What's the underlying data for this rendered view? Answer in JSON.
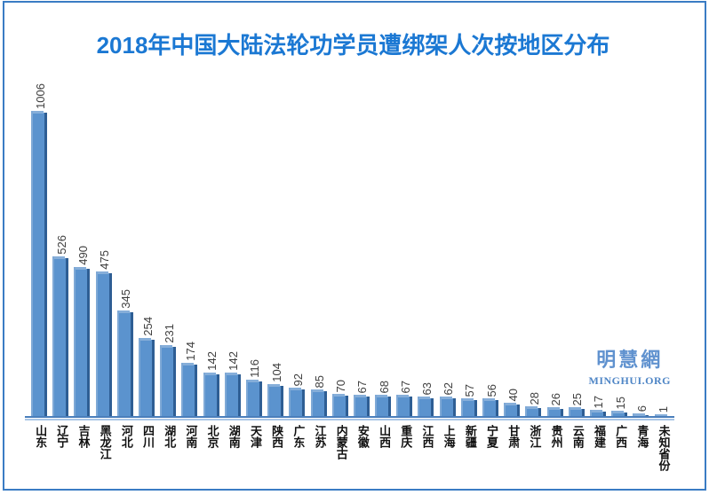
{
  "title": "2018年中国大陆法轮功学员遭绑架人次按地区分布",
  "watermark": {
    "cn": "明慧網",
    "en": "MINGHUI.ORG"
  },
  "colors": {
    "title_blue": "#1b78d3",
    "bar_face": "#5b93ce",
    "bar_side": "#2e5e94",
    "bar_bevel": "#86aed9",
    "axis_dark": "#4a7ebb",
    "axis_light": "#aac6e6",
    "frame_border": "#3a7cc4",
    "watermark_blue": "#6092cf",
    "value_label": "#3f3f3f"
  },
  "chart_data": {
    "type": "bar",
    "title": "2018年中国大陆法轮功学员遭绑架人次按地区分布",
    "categories": [
      "山东",
      "辽宁",
      "吉林",
      "黑龙江",
      "河北",
      "四川",
      "湖北",
      "河南",
      "北京",
      "湖南",
      "天津",
      "陕西",
      "广东",
      "江苏",
      "内蒙古",
      "安徽",
      "山西",
      "重庆",
      "江西",
      "上海",
      "新疆",
      "宁夏",
      "甘肃",
      "浙江",
      "贵州",
      "云南",
      "福建",
      "广西",
      "青海",
      "未知省份"
    ],
    "values": [
      1006,
      526,
      490,
      475,
      345,
      254,
      231,
      174,
      142,
      142,
      116,
      104,
      92,
      85,
      70,
      67,
      68,
      67,
      63,
      62,
      57,
      56,
      40,
      28,
      26,
      25,
      17,
      15,
      6,
      1
    ],
    "xlabel": "",
    "ylabel": "",
    "ylim": [
      0,
      1100
    ],
    "grid": false,
    "legend": false,
    "data_labels": "rotated-90-above-bars",
    "category_label_orientation": "vertical-upright"
  }
}
